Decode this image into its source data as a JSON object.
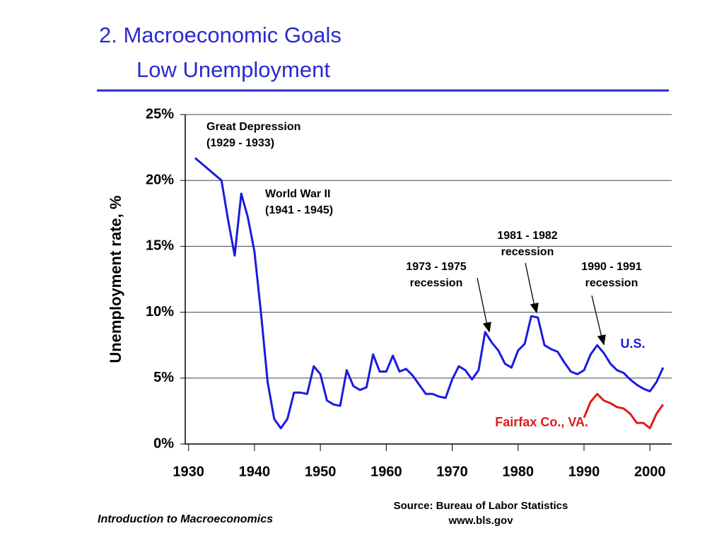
{
  "slide": {
    "title": [
      "2.  Macroeconomic Goals",
      "Low Unemployment"
    ],
    "footer": "Introduction to Macroeconomics",
    "source": [
      "Source: Bureau of Labor Statistics",
      "www.bls.gov"
    ]
  },
  "chart_data": {
    "type": "line",
    "ylabel": "Unemployment rate, %",
    "xlim": [
      1929.5,
      2003.3
    ],
    "xticks": [
      1930,
      1940,
      1950,
      1960,
      1970,
      1980,
      1990,
      2000
    ],
    "ylim": [
      0,
      25
    ],
    "yticks": [
      {
        "value": 0,
        "label": "0%"
      },
      {
        "value": 5,
        "label": "5%"
      },
      {
        "value": 10,
        "label": "10%"
      },
      {
        "value": 15,
        "label": "15%"
      },
      {
        "value": 20,
        "label": "20%"
      },
      {
        "value": 25,
        "label": "25%"
      }
    ],
    "grid": true,
    "series": [
      {
        "name": "U.S.",
        "color": "#1a1ae0",
        "x": [
          1931,
          1935,
          1936,
          1937,
          1938,
          1939,
          1940,
          1941,
          1942,
          1943,
          1944,
          1945,
          1946,
          1947,
          1948,
          1949,
          1950,
          1951,
          1952,
          1953,
          1954,
          1955,
          1956,
          1957,
          1958,
          1959,
          1960,
          1961,
          1962,
          1963,
          1964,
          1965,
          1966,
          1967,
          1968,
          1969,
          1970,
          1971,
          1972,
          1973,
          1974,
          1975,
          1976,
          1977,
          1978,
          1979,
          1980,
          1981,
          1982,
          1983,
          1984,
          1985,
          1986,
          1987,
          1988,
          1989,
          1990,
          1991,
          1992,
          1993,
          1994,
          1995,
          1996,
          1997,
          1998,
          1999,
          2000,
          2001,
          2002
        ],
        "values": [
          21.7,
          20.0,
          17.0,
          14.3,
          19.0,
          17.2,
          14.6,
          9.9,
          4.7,
          1.9,
          1.2,
          1.9,
          3.9,
          3.9,
          3.8,
          5.9,
          5.3,
          3.3,
          3.0,
          2.9,
          5.6,
          4.4,
          4.1,
          4.3,
          6.8,
          5.5,
          5.5,
          6.7,
          5.5,
          5.7,
          5.2,
          4.5,
          3.8,
          3.8,
          3.6,
          3.5,
          4.9,
          5.9,
          5.6,
          4.9,
          5.6,
          8.5,
          7.7,
          7.1,
          6.1,
          5.8,
          7.1,
          7.6,
          9.7,
          9.6,
          7.5,
          7.2,
          7.0,
          6.2,
          5.5,
          5.3,
          5.6,
          6.8,
          7.5,
          6.9,
          6.1,
          5.6,
          5.4,
          4.9,
          4.5,
          4.2,
          4.0,
          4.7,
          5.8
        ]
      },
      {
        "name": "Fairfax Co., VA.",
        "color": "#e01a1a",
        "x": [
          1990,
          1991,
          1992,
          1993,
          1994,
          1995,
          1996,
          1997,
          1998,
          1999,
          2000,
          2001,
          2002
        ],
        "values": [
          2.0,
          3.2,
          3.8,
          3.3,
          3.1,
          2.8,
          2.7,
          2.3,
          1.6,
          1.6,
          1.2,
          2.3,
          3.0
        ]
      }
    ],
    "annotations": [
      [
        "Great Depression",
        "(1929 - 1933)"
      ],
      [
        "World War II",
        "(1941 - 1945)"
      ],
      [
        "1973 - 1975",
        "recession"
      ],
      [
        "1981 - 1982",
        "recession"
      ],
      [
        "1990 - 1991",
        "recession"
      ]
    ]
  }
}
